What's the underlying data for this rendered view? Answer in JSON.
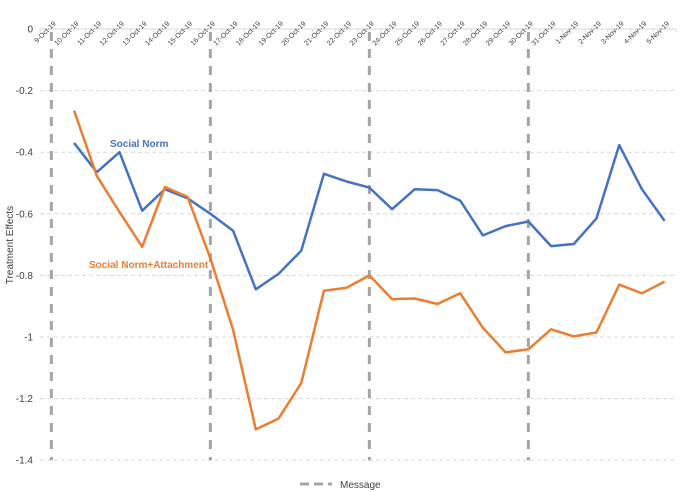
{
  "chart_data": {
    "type": "line",
    "title": "",
    "xlabel": "",
    "ylabel": "Treatment Effects",
    "ylim": [
      -1.4,
      0
    ],
    "yticks": [
      0,
      -0.2,
      -0.4,
      -0.6,
      -0.8,
      -1,
      -1.2,
      -1.4
    ],
    "ytick_labels": [
      "0",
      "-0.2",
      "-0.4",
      "-0.6",
      "-0.8",
      "-1",
      "-1.2",
      "-1.4"
    ],
    "grid": "horizontal dashed",
    "categories": [
      "9-Oct-19",
      "10-Oct-19",
      "11-Oct-19",
      "12-Oct-19",
      "13-Oct-19",
      "14-Oct-19",
      "15-Oct-19",
      "16-Oct-19",
      "17-Oct-19",
      "18-Oct-19",
      "19-Oct-19",
      "20-Oct-19",
      "21-Oct-19",
      "22-Oct-19",
      "23-Oct-19",
      "24-Oct-19",
      "25-Oct-19",
      "26-Oct-19",
      "27-Oct-19",
      "28-Oct-19",
      "29-Oct-19",
      "30-Oct-19",
      "31-Oct-19",
      "1-Nov-19",
      "2-Nov-19",
      "3-Nov-19",
      "4-Nov-19",
      "5-Nov-19"
    ],
    "series": [
      {
        "name": "Social Norm",
        "color": "#4472C4",
        "values": [
          null,
          -0.37,
          -0.465,
          -0.4,
          -0.59,
          -0.52,
          -0.55,
          -0.6,
          -0.655,
          -0.845,
          -0.795,
          -0.72,
          -0.47,
          -0.495,
          -0.515,
          -0.585,
          -0.52,
          -0.523,
          -0.557,
          -0.67,
          -0.64,
          -0.625,
          -0.705,
          -0.698,
          -0.615,
          -0.377,
          -0.52,
          -0.623
        ]
      },
      {
        "name": "Social Norm+Attachment",
        "color": "#ED7D31",
        "values": [
          null,
          -0.265,
          -0.477,
          -0.594,
          -0.707,
          -0.513,
          -0.545,
          -0.745,
          -0.977,
          -1.3,
          -1.265,
          -1.15,
          -0.85,
          -0.84,
          -0.8,
          -0.877,
          -0.875,
          -0.893,
          -0.858,
          -0.97,
          -1.05,
          -1.04,
          -0.975,
          -0.998,
          -0.985,
          -0.83,
          -0.858,
          -0.82
        ]
      }
    ],
    "annotations": [
      {
        "type": "vertical-dashed-line",
        "series": "Message",
        "x": "9-Oct-19"
      },
      {
        "type": "vertical-dashed-line",
        "series": "Message",
        "x": "16-Oct-19"
      },
      {
        "type": "vertical-dashed-line",
        "series": "Message",
        "x": "23-Oct-19"
      },
      {
        "type": "vertical-dashed-line",
        "series": "Message",
        "x": "30-Oct-19"
      }
    ],
    "series_labels": [
      {
        "text": "Social Norm",
        "color": "#4472C4"
      },
      {
        "text": "Social Norm+Attachment",
        "color": "#ED7D31"
      }
    ],
    "legend": {
      "position": "bottom",
      "entries": [
        {
          "name": "Message",
          "color": "#A5A5A5",
          "style": "dashed"
        }
      ]
    }
  }
}
